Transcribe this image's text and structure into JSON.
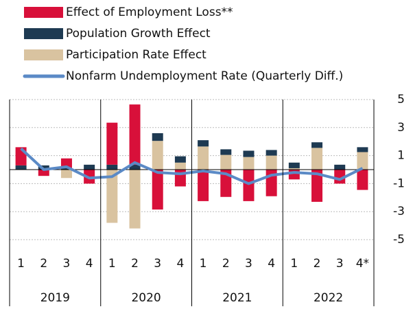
{
  "chart_data": {
    "type": "bar",
    "stacked": true,
    "categories": [
      "1",
      "2",
      "3",
      "4",
      "1",
      "2",
      "3",
      "4",
      "1",
      "2",
      "3",
      "4",
      "1",
      "2",
      "3",
      "4*"
    ],
    "groups": [
      "2019",
      "2020",
      "2021",
      "2022"
    ],
    "series": [
      {
        "name": "Effect of Employment Loss**",
        "type": "bar",
        "color": "#d8103a",
        "values": [
          1.3,
          -0.45,
          0.7,
          -1.0,
          3.0,
          4.3,
          -2.85,
          -1.2,
          -2.25,
          -1.95,
          -2.25,
          -1.9,
          -0.7,
          -2.3,
          -1.0,
          -1.45
        ]
      },
      {
        "name": "Population Growth Effect",
        "type": "bar",
        "color": "#1e3a52",
        "values": [
          0.3,
          0.3,
          0.1,
          0.35,
          0.35,
          0.35,
          0.55,
          0.45,
          0.45,
          0.4,
          0.45,
          0.4,
          0.4,
          0.4,
          0.35,
          0.35
        ]
      },
      {
        "name": "Participation Rate Effect",
        "type": "bar",
        "color": "#d9c3a0",
        "values": [
          0,
          0,
          -0.6,
          0,
          -3.8,
          -4.2,
          2.05,
          0.5,
          1.65,
          1.05,
          0.9,
          1.0,
          0.1,
          1.55,
          0,
          1.25
        ]
      },
      {
        "name": "Nonfarm Undemployment Rate (Quarterly Diff.)",
        "type": "line",
        "color": "#5b8ac6",
        "values": [
          1.5,
          0.0,
          0.2,
          -0.6,
          -0.5,
          0.5,
          -0.2,
          -0.3,
          -0.1,
          -0.3,
          -1.0,
          -0.4,
          -0.2,
          -0.3,
          -0.7,
          0.1
        ]
      }
    ],
    "ylim": [
      -5,
      5
    ],
    "yticks": [
      5,
      3,
      1,
      -1,
      -3,
      -5
    ],
    "grid": true
  }
}
